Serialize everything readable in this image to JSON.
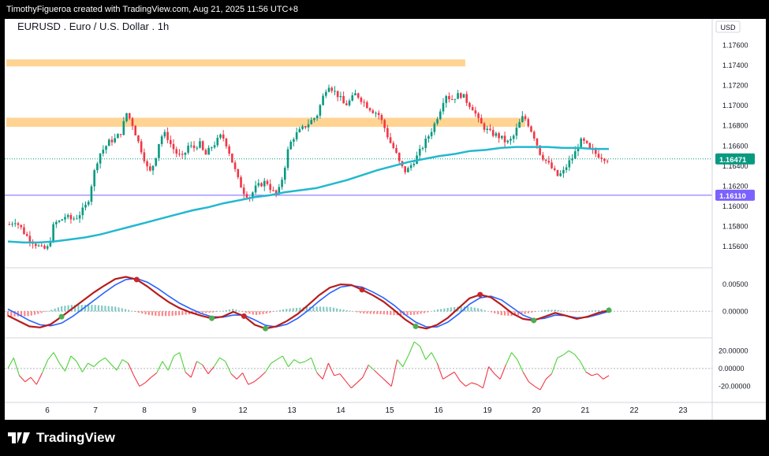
{
  "header": {
    "caption": "TimothyFigueroa created with TradingView.com, Aug 21, 2025 11:56 UTC+8"
  },
  "symbol": {
    "title": "EURUSD . Euro / U.S. Dollar . 1h"
  },
  "branding": {
    "logo_text": "TradingView"
  },
  "colors": {
    "bull": "#089981",
    "bear": "#f23645",
    "ma": "#22b8cf",
    "zone": "#ffcc80",
    "support": "#7b61ff",
    "hist_pos": "#4db6ac",
    "hist_neg": "#ff5252",
    "fast": "#4caf50",
    "slow": "#2962ff",
    "red_line": "#b71c1c"
  },
  "chart_data": [
    {
      "type": "candlestick",
      "title": "EURUSD . Euro / U.S. Dollar . 1h",
      "currency_label": "USD",
      "y_ticks": [
        "1.17600",
        "1.17400",
        "1.17200",
        "1.17000",
        "1.16800",
        "1.16600",
        "1.16400",
        "1.16200",
        "1.16000",
        "1.15800",
        "1.15600"
      ],
      "ylim": [
        1.1542,
        1.178
      ],
      "x_labels": [
        "6",
        "7",
        "8",
        "9",
        "12",
        "13",
        "14",
        "15",
        "16",
        "19",
        "20",
        "21",
        "22",
        "23"
      ],
      "last_price": {
        "label": "1.16471",
        "value": 1.16471
      },
      "support_line": {
        "label": "1.16110",
        "value": 1.1611
      },
      "zones": [
        {
          "from": 1.1739,
          "to": 1.1746,
          "span": "to 18 Aug"
        },
        {
          "from": 1.1679,
          "to": 1.1688,
          "span": "to 19 Aug"
        }
      ],
      "close_path": [
        1.1582,
        1.1586,
        1.1579,
        1.1571,
        1.1566,
        1.1561,
        1.1557,
        1.1559,
        1.1583,
        1.1585,
        1.159,
        1.1587,
        1.1589,
        1.1595,
        1.1603,
        1.163,
        1.1651,
        1.1658,
        1.1665,
        1.1667,
        1.1674,
        1.1693,
        1.1682,
        1.1665,
        1.165,
        1.1632,
        1.1645,
        1.1669,
        1.1672,
        1.166,
        1.1652,
        1.1648,
        1.166,
        1.1658,
        1.1663,
        1.165,
        1.1658,
        1.1664,
        1.1671,
        1.166,
        1.1642,
        1.1625,
        1.1614,
        1.1609,
        1.1618,
        1.1622,
        1.1625,
        1.1615,
        1.1611,
        1.1632,
        1.166,
        1.167,
        1.1675,
        1.168,
        1.1685,
        1.169,
        1.1707,
        1.1722,
        1.1715,
        1.1709,
        1.17,
        1.1705,
        1.1712,
        1.1706,
        1.17,
        1.1695,
        1.1692,
        1.168,
        1.1665,
        1.1655,
        1.164,
        1.1634,
        1.1642,
        1.165,
        1.166,
        1.167,
        1.1681,
        1.1695,
        1.1712,
        1.1706,
        1.171,
        1.1711,
        1.1703,
        1.1697,
        1.1684,
        1.1678,
        1.1673,
        1.1671,
        1.1668,
        1.1663,
        1.1667,
        1.168,
        1.169,
        1.168,
        1.1668,
        1.1652,
        1.1645,
        1.1638,
        1.163,
        1.1633,
        1.1643,
        1.165,
        1.1665,
        1.1663,
        1.1655,
        1.1652,
        1.1649,
        1.1647
      ],
      "ma_path": [
        1.1565,
        1.1564,
        1.1564,
        1.1565,
        1.1567,
        1.1569,
        1.1572,
        1.1576,
        1.158,
        1.1584,
        1.1588,
        1.1592,
        1.1596,
        1.1599,
        1.1603,
        1.1606,
        1.1609,
        1.1611,
        1.1614,
        1.1616,
        1.1618,
        1.1622,
        1.1626,
        1.1631,
        1.1636,
        1.164,
        1.1644,
        1.1647,
        1.165,
        1.1652,
        1.1655,
        1.1656,
        1.1658,
        1.1659,
        1.1659,
        1.1659,
        1.1658,
        1.1658,
        1.1657,
        1.1657
      ],
      "series": [
        {
          "name": "",
          "type": "ma"
        }
      ]
    },
    {
      "type": "line",
      "y_ticks": [
        "0.00500",
        "0.00000"
      ],
      "ylim": [
        -0.0042,
        0.0075
      ],
      "fast": [
        -0.0008,
        -0.0018,
        -0.0028,
        -0.003,
        -0.0024,
        -0.001,
        0.0005,
        0.002,
        0.0035,
        0.0048,
        0.006,
        0.0064,
        0.0059,
        0.0046,
        0.0031,
        0.0017,
        0.0006,
        -0.0002,
        -0.0008,
        -0.0013,
        -0.001,
        -0.0001,
        -0.0009,
        -0.0025,
        -0.0032,
        -0.0028,
        -0.0018,
        -0.0005,
        0.0012,
        0.003,
        0.0044,
        0.005,
        0.0049,
        0.004,
        0.003,
        0.0018,
        0.0002,
        -0.0015,
        -0.0028,
        -0.0032,
        -0.0025,
        -0.0012,
        0.0006,
        0.0024,
        0.0031,
        0.0026,
        0.0012,
        -0.0004,
        -0.0014,
        -0.0017,
        -0.001,
        -0.0003,
        -0.0008,
        -0.0014,
        -0.001,
        -0.0003,
        0.0002
      ],
      "slow": [
        0.0004,
        -0.0006,
        -0.0017,
        -0.0025,
        -0.0027,
        -0.0022,
        -0.001,
        0.0005,
        0.002,
        0.0035,
        0.0049,
        0.0059,
        0.0061,
        0.0054,
        0.0042,
        0.0028,
        0.0015,
        0.0005,
        -0.0004,
        -0.001,
        -0.0011,
        -0.0007,
        -0.0007,
        -0.0016,
        -0.0026,
        -0.0029,
        -0.0024,
        -0.0013,
        0.0002,
        0.0019,
        0.0034,
        0.0045,
        0.0048,
        0.0045,
        0.0036,
        0.0025,
        0.0011,
        -0.0006,
        -0.002,
        -0.0029,
        -0.0029,
        -0.002,
        -0.0005,
        0.0013,
        0.0025,
        0.0028,
        0.0021,
        0.0007,
        -0.0007,
        -0.0015,
        -0.0013,
        -0.0007,
        -0.0008,
        -0.0012,
        -0.0011,
        -0.0006,
        0.0
      ],
      "cross_up": [
        5,
        19,
        24,
        38,
        49,
        56
      ],
      "cross_down": [
        12,
        22,
        33,
        44
      ]
    },
    {
      "type": "line",
      "y_ticks": [
        "20.00000",
        "0.00000",
        "-20.00000"
      ],
      "ylim": [
        -32,
        30
      ],
      "osc": [
        0,
        12,
        -8,
        -15,
        -10,
        -18,
        -5,
        10,
        18,
        6,
        -3,
        14,
        8,
        -4,
        6,
        2,
        8,
        12,
        5,
        -2,
        10,
        6,
        -8,
        -20,
        -16,
        -10,
        -5,
        8,
        -2,
        14,
        18,
        -4,
        -10,
        8,
        4,
        -6,
        2,
        12,
        8,
        -6,
        -12,
        -5,
        -18,
        -15,
        -10,
        -4,
        6,
        10,
        14,
        2,
        10,
        6,
        8,
        12,
        -5,
        -12,
        6,
        -8,
        -6,
        -14,
        -22,
        -16,
        -10,
        4,
        -2,
        -8,
        -14,
        -20,
        10,
        2,
        15,
        30,
        25,
        10,
        18,
        6,
        -12,
        -8,
        -4,
        -14,
        -20,
        -16,
        -18,
        -22,
        2,
        -6,
        -12,
        4,
        18,
        10,
        -4,
        -15,
        -20,
        -24,
        -12,
        -6,
        12,
        15,
        20,
        16,
        8,
        -4,
        -8,
        -6,
        -12,
        -8
      ]
    }
  ]
}
